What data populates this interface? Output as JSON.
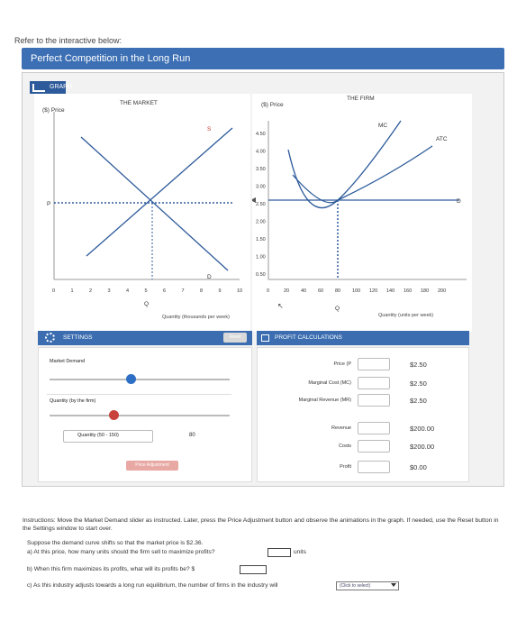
{
  "intro": "Refer to the interactive below:",
  "title": "Perfect Competition in the Long Run",
  "graph_tab": "GRAPH",
  "market": {
    "title": "THE MARKET",
    "ylabel": "($) Price",
    "xlabel": "Quantity (thousands per week)",
    "xticks": [
      "0",
      "1",
      "2",
      "3",
      "4",
      "5",
      "6",
      "7",
      "8",
      "9",
      "10"
    ],
    "price_label": "P",
    "q_label": "Q",
    "supply_label": "S",
    "demand_label": "D"
  },
  "firm": {
    "title": "THE FIRM",
    "ylabel": "($) Price",
    "xlabel": "Quantity (units per week)",
    "yticks": [
      "4.50",
      "4.00",
      "3.50",
      "3.00",
      "2.50",
      "2.00",
      "1.50",
      "1.00",
      "0.50"
    ],
    "xticks": [
      "0",
      "20",
      "40",
      "60",
      "80",
      "100",
      "120",
      "140",
      "160",
      "180",
      "200"
    ],
    "mc_label": "MC",
    "atc_label": "ATC",
    "d_label": "D",
    "q_label": "Q"
  },
  "settings": {
    "header": "SETTINGS",
    "reset_label": "Reset",
    "market_demand_label": "Market Demand",
    "quantity_label": "Quantity (by the firm)",
    "quantity_range_label": "Quantity (50 - 150)",
    "quantity_value": "80",
    "price_adjustment_label": "Price Adjustment"
  },
  "profit": {
    "header": "PROFIT CALCULATIONS",
    "rows": [
      {
        "label": "Price (P",
        "value": "$2.50"
      },
      {
        "label": "Marginal Cost (MC)",
        "value": "$2.50"
      },
      {
        "label": "Marginal Revenue (MR)",
        "value": "$2.50"
      },
      {
        "label": "Revenue",
        "value": "$200.00"
      },
      {
        "label": "Costs",
        "value": "$200.00"
      },
      {
        "label": "Profit",
        "value": "$0.00"
      }
    ]
  },
  "instructions": "Instructions: Move the Market Demand slider as instructed. Later, press the Price Adjustment button and observe the animations in the graph. If needed, use the Reset button in the Settings window to start over.",
  "question_intro": "Suppose the demand curve shifts so that the market price is $2.36.",
  "q_a": "a) At this price, how many units should the firm sell to maximize profits?",
  "q_a_unit": "units",
  "q_b": "b) When this firm maximizes its profits, what will its profits be? $",
  "q_c": "c) As this industry adjusts towards a long run equilibrium, the number of firms in the industry will",
  "dropdown_placeholder": "(Click to select)",
  "colors": {
    "accent": "#3b6db0",
    "mc": "#c0392b",
    "atc": "#2e8b57",
    "demand": "#0077cc"
  }
}
